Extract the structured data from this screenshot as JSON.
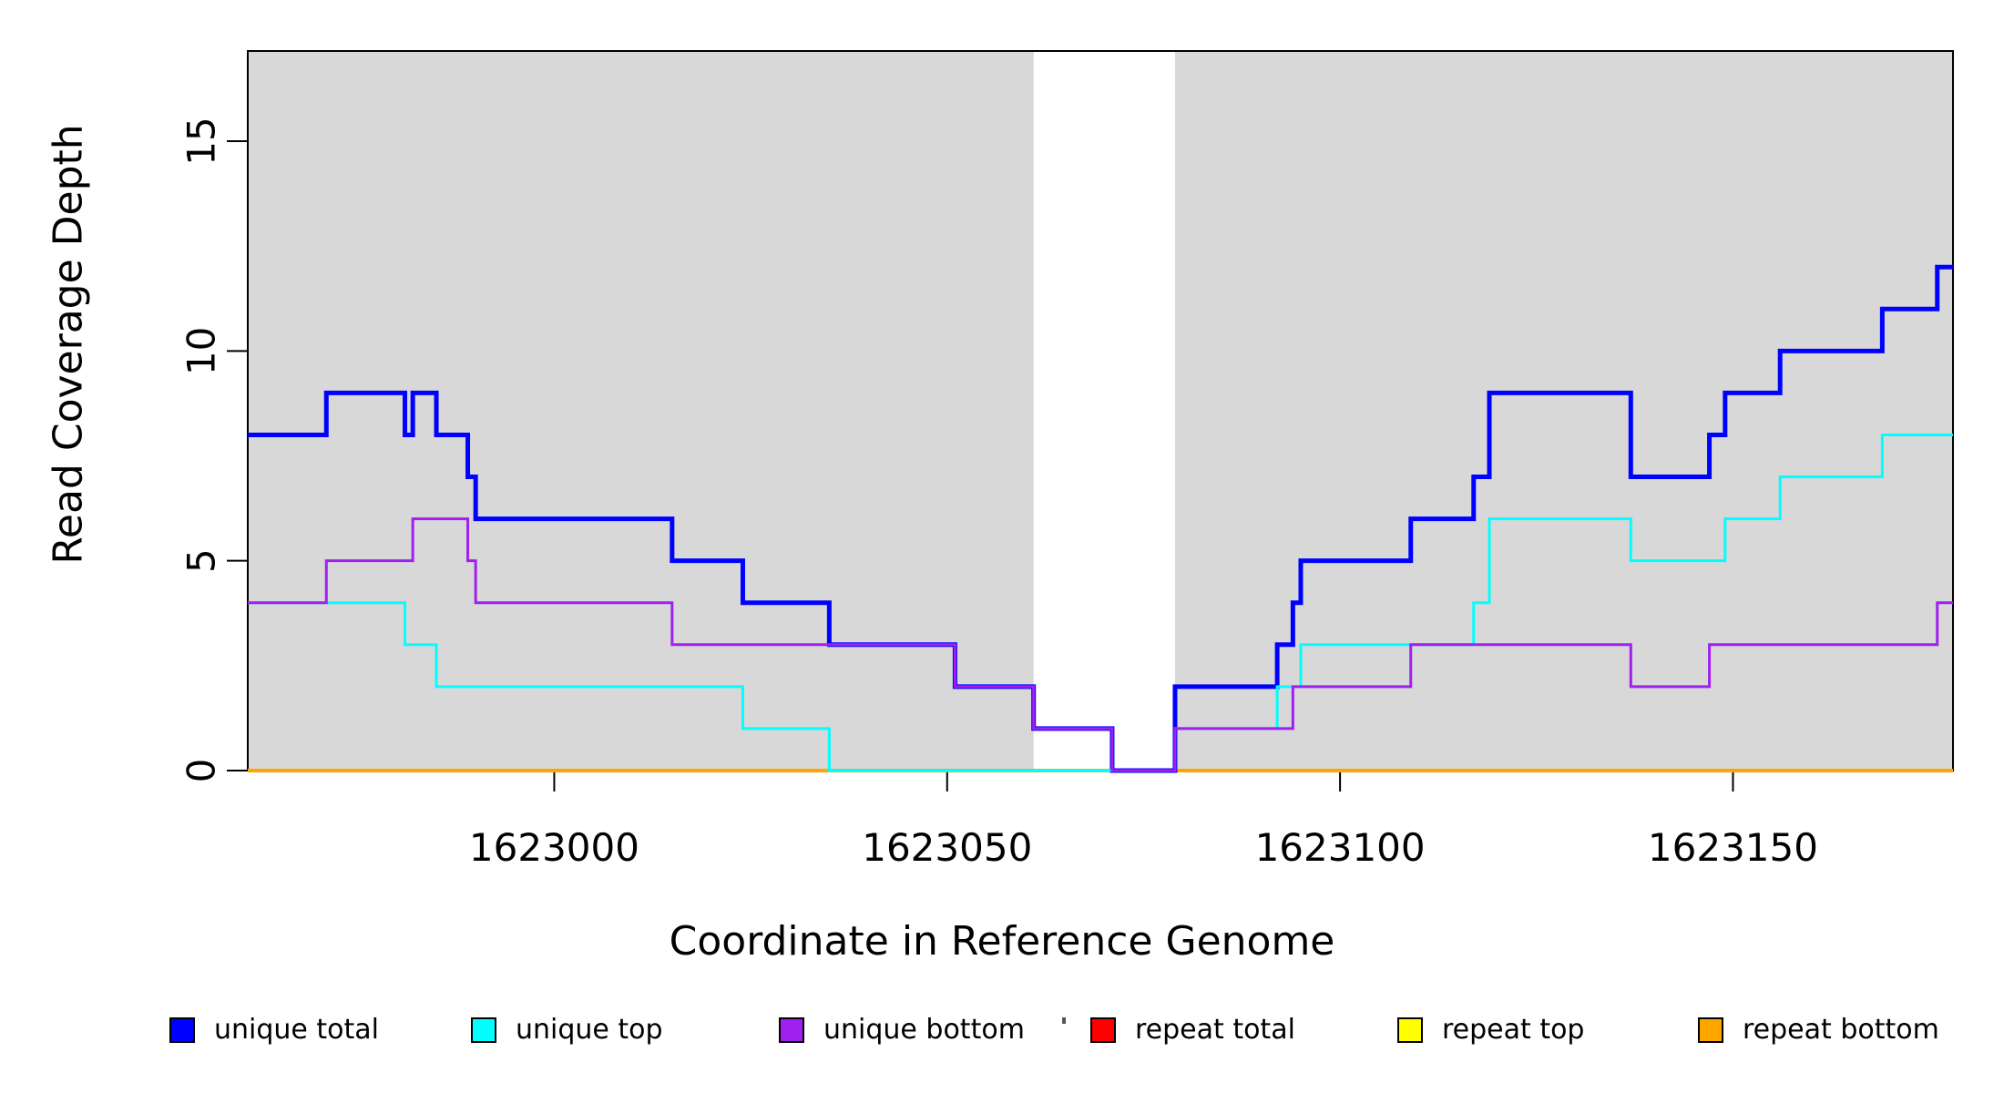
{
  "axes": {
    "x_label": "Coordinate in Reference Genome",
    "y_label": "Read Coverage Depth",
    "x_ticks": [
      1623000,
      1623050,
      1623100,
      1623150
    ],
    "y_ticks": [
      0,
      5,
      10,
      15
    ],
    "x_range": [
      1622961,
      1623178
    ],
    "y_range": [
      0,
      17.15
    ]
  },
  "colors": {
    "background_shade": "#D8D8D8",
    "plot_border": "#000000",
    "unique_total": "#0000FF",
    "unique_top": "#00FFFF",
    "unique_bottom": "#A020F0",
    "repeat_total": "#FF0000",
    "repeat_top": "#FFFF00",
    "repeat_bottom": "#FFA500"
  },
  "legend": [
    {
      "label": "unique total",
      "color": "#0000FF"
    },
    {
      "label": "unique top",
      "color": "#00FFFF"
    },
    {
      "label": "unique bottom",
      "color": "#A020F0"
    },
    {
      "label": "repeat total",
      "color": "#FF0000"
    },
    {
      "label": "repeat top",
      "color": "#FFFF00"
    },
    {
      "label": "repeat bottom",
      "color": "#FFA500"
    }
  ],
  "chart_data": {
    "type": "line",
    "interpolation": "step-after",
    "title": "",
    "xlabel": "Coordinate in Reference Genome",
    "ylabel": "Read Coverage Depth",
    "xlim": [
      1622961,
      1623178
    ],
    "ylim": [
      0,
      17.15
    ],
    "grid": false,
    "legend_position": "bottom",
    "shaded_x_regions": [
      [
        1622961,
        1623061
      ],
      [
        1623079,
        1623178
      ]
    ],
    "unshaded_gap": [
      1623061,
      1623079
    ],
    "series": [
      {
        "name": "unique total",
        "color": "#0000FF",
        "lwd": 5,
        "steps": [
          [
            1622961,
            8
          ],
          [
            1622971,
            9
          ],
          [
            1622981,
            8
          ],
          [
            1622982,
            9
          ],
          [
            1622985,
            8
          ],
          [
            1622989,
            7
          ],
          [
            1622990,
            6
          ],
          [
            1623015,
            5
          ],
          [
            1623024,
            4
          ],
          [
            1623035,
            3
          ],
          [
            1623051,
            2
          ],
          [
            1623061,
            1
          ],
          [
            1623071,
            0
          ],
          [
            1623079,
            2
          ],
          [
            1623092,
            3
          ],
          [
            1623094,
            4
          ],
          [
            1623095,
            5
          ],
          [
            1623109,
            6
          ],
          [
            1623117,
            7
          ],
          [
            1623119,
            9
          ],
          [
            1623137,
            7
          ],
          [
            1623147,
            8
          ],
          [
            1623149,
            9
          ],
          [
            1623156,
            10
          ],
          [
            1623169,
            11
          ],
          [
            1623176,
            12
          ]
        ]
      },
      {
        "name": "unique top",
        "color": "#00FFFF",
        "lwd": 3,
        "steps": [
          [
            1622961,
            4
          ],
          [
            1622981,
            3
          ],
          [
            1622985,
            2
          ],
          [
            1623024,
            1
          ],
          [
            1623035,
            0
          ],
          [
            1623079,
            1
          ],
          [
            1623092,
            2
          ],
          [
            1623095,
            3
          ],
          [
            1623117,
            4
          ],
          [
            1623119,
            6
          ],
          [
            1623137,
            5
          ],
          [
            1623149,
            6
          ],
          [
            1623156,
            7
          ],
          [
            1623169,
            8
          ]
        ]
      },
      {
        "name": "unique bottom",
        "color": "#A020F0",
        "lwd": 3,
        "steps": [
          [
            1622961,
            4
          ],
          [
            1622971,
            5
          ],
          [
            1622982,
            6
          ],
          [
            1622989,
            5
          ],
          [
            1622990,
            4
          ],
          [
            1623015,
            3
          ],
          [
            1623051,
            2
          ],
          [
            1623061,
            1
          ],
          [
            1623071,
            0
          ],
          [
            1623079,
            1
          ],
          [
            1623094,
            2
          ],
          [
            1623109,
            3
          ],
          [
            1623137,
            2
          ],
          [
            1623147,
            3
          ],
          [
            1623176,
            4
          ]
        ]
      },
      {
        "name": "repeat total",
        "color": "#FF0000",
        "lwd": 3,
        "steps": [
          [
            1622961,
            0
          ]
        ]
      },
      {
        "name": "repeat top",
        "color": "#FFFF00",
        "lwd": 3,
        "steps": [
          [
            1622961,
            0
          ]
        ]
      },
      {
        "name": "repeat bottom",
        "color": "#FFA500",
        "lwd": 4,
        "steps": [
          [
            1622961,
            0
          ]
        ]
      }
    ]
  }
}
